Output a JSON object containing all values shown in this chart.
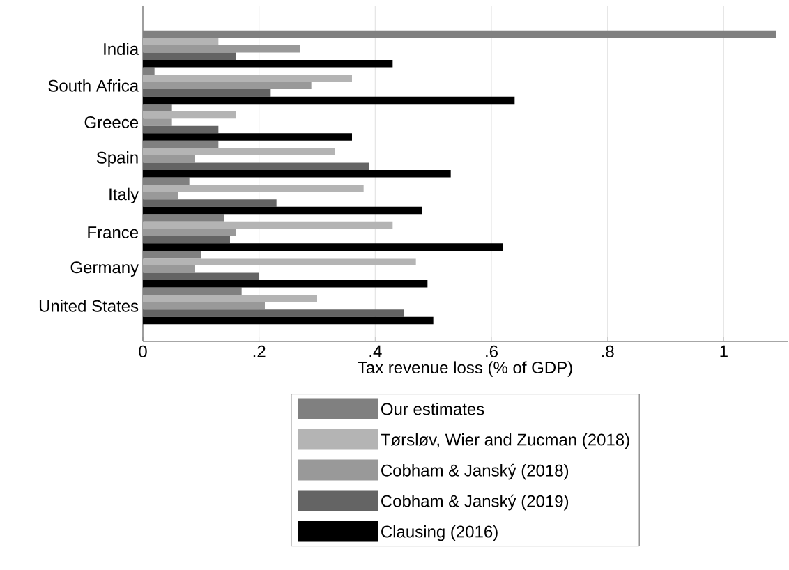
{
  "chart_data": {
    "type": "bar",
    "orientation": "horizontal",
    "xlabel": "Tax revenue loss (% of GDP)",
    "categories": [
      "India",
      "South Africa",
      "Greece",
      "Spain",
      "Italy",
      "France",
      "Germany",
      "United States"
    ],
    "series": [
      {
        "name": "Our estimates",
        "color": "#808080",
        "values": [
          1.09,
          0.02,
          0.05,
          0.13,
          0.08,
          0.14,
          0.1,
          0.17
        ]
      },
      {
        "name": "Tørsløv, Wier and Zucman (2018)",
        "color": "#b4b4b4",
        "values": [
          0.13,
          0.36,
          0.16,
          0.33,
          0.38,
          0.43,
          0.47,
          0.3
        ]
      },
      {
        "name": "Cobham & Janský (2018)",
        "color": "#999999",
        "values": [
          0.27,
          0.29,
          0.05,
          0.09,
          0.06,
          0.16,
          0.09,
          0.21
        ]
      },
      {
        "name": "Cobham & Janský (2019)",
        "color": "#646464",
        "values": [
          0.16,
          0.22,
          0.13,
          0.39,
          0.23,
          0.15,
          0.2,
          0.45
        ]
      },
      {
        "name": "Clausing (2016)",
        "color": "#000000",
        "values": [
          0.43,
          0.64,
          0.36,
          0.53,
          0.48,
          0.62,
          0.49,
          0.5
        ]
      }
    ],
    "xlim": [
      0,
      1.11
    ],
    "xticks": [
      0,
      {
        "value": 0.2,
        "label": ".2"
      },
      {
        "value": 0.4,
        "label": ".4"
      },
      {
        "value": 0.6,
        "label": ".6"
      },
      {
        "value": 0.8,
        "label": ".8"
      },
      1
    ],
    "grid": "x",
    "legend": "bottom"
  }
}
